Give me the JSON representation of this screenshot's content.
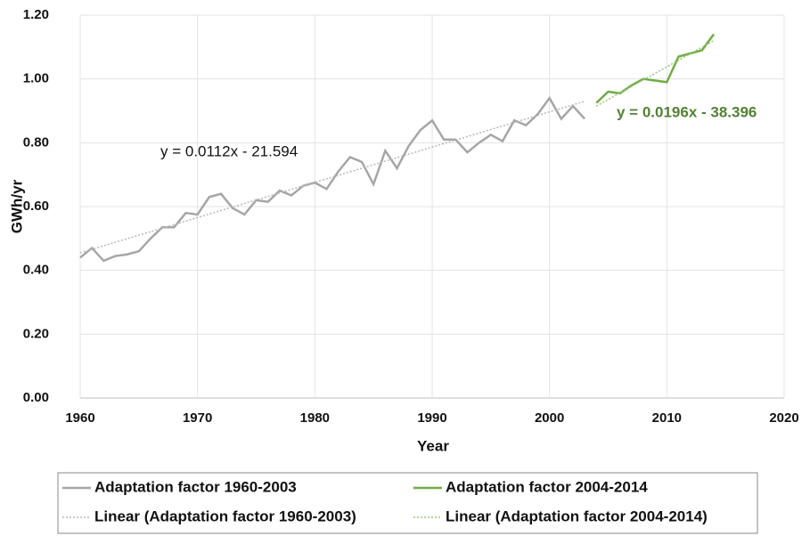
{
  "chart_data": {
    "type": "line",
    "x_label": "Year",
    "y_label": "GWh/yr",
    "xlim": [
      1960,
      2020
    ],
    "xticks": [
      1960,
      1970,
      1980,
      1990,
      2000,
      2010,
      2020
    ],
    "ylim": [
      0,
      1.2
    ],
    "yticks": [
      {
        "value": 0,
        "label": "0.00"
      },
      {
        "value": 0.2,
        "label": "0.20"
      },
      {
        "value": 0.4,
        "label": "0.40"
      },
      {
        "value": 0.6,
        "label": "0.60"
      },
      {
        "value": 0.8,
        "label": "0.80"
      },
      {
        "value": 1.0,
        "label": "1.00"
      },
      {
        "value": 1.2,
        "label": "1.20"
      }
    ],
    "grid": true,
    "legend": "bottom",
    "series": [
      {
        "name": "Adaptation factor 1960-2003",
        "color": "#a6a6a6",
        "style": "solid",
        "x": [
          1960,
          1961,
          1962,
          1963,
          1964,
          1965,
          1966,
          1967,
          1968,
          1969,
          1970,
          1971,
          1972,
          1973,
          1974,
          1975,
          1976,
          1977,
          1978,
          1979,
          1980,
          1981,
          1982,
          1983,
          1984,
          1985,
          1986,
          1987,
          1988,
          1989,
          1990,
          1991,
          1992,
          1993,
          1994,
          1995,
          1996,
          1997,
          1998,
          1999,
          2000,
          2001,
          2002,
          2003
        ],
        "values": [
          0.44,
          0.47,
          0.43,
          0.445,
          0.45,
          0.46,
          0.5,
          0.535,
          0.535,
          0.58,
          0.575,
          0.63,
          0.64,
          0.595,
          0.575,
          0.62,
          0.615,
          0.65,
          0.635,
          0.665,
          0.675,
          0.655,
          0.71,
          0.755,
          0.74,
          0.67,
          0.775,
          0.72,
          0.79,
          0.84,
          0.87,
          0.81,
          0.81,
          0.77,
          0.8,
          0.825,
          0.805,
          0.87,
          0.855,
          0.89,
          0.94,
          0.875,
          0.915,
          0.875
        ]
      },
      {
        "name": "Adaptation factor 2004-2014",
        "color": "#70ad47",
        "style": "solid",
        "x": [
          2004,
          2005,
          2006,
          2007,
          2008,
          2009,
          2010,
          2011,
          2012,
          2013,
          2014
        ],
        "values": [
          0.925,
          0.96,
          0.955,
          0.98,
          1.0,
          0.995,
          0.99,
          1.07,
          1.08,
          1.09,
          1.14
        ]
      },
      {
        "name": "Linear (Adaptation factor 1960-2003)",
        "color": "#b8b8b8",
        "style": "dotted",
        "x": [
          1960,
          2003
        ],
        "values": [
          0.455,
          0.93
        ]
      },
      {
        "name": "Linear (Adaptation factor 2004-2014)",
        "color": "#9cc47a",
        "style": "dotted",
        "x": [
          2004,
          2014
        ],
        "values": [
          0.915,
          1.12
        ]
      }
    ],
    "annotations": [
      {
        "text": "y = 0.0112x - 21.594",
        "color": "#111111"
      },
      {
        "text": "y = 0.0196x - 38.396",
        "color": "#548235"
      }
    ]
  }
}
